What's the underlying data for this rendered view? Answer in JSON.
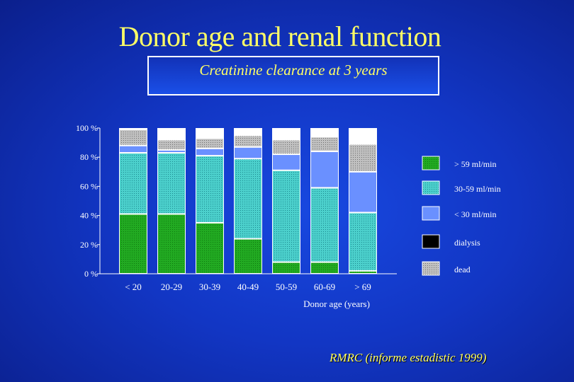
{
  "title": "Donor age and renal function",
  "subtitle": "Creatinine clearance at 3 years",
  "source": "RMRC (informe estadistic 1999)",
  "chart_data": {
    "type": "bar",
    "stacked": true,
    "xlabel": "Donor age (years)",
    "ylabel": "",
    "ylim": [
      0,
      100
    ],
    "yticks": [
      "0 %",
      "20 %",
      "40 %",
      "60 %",
      "80 %",
      "100 %"
    ],
    "categories": [
      "< 20",
      "20-29",
      "30-39",
      "40-49",
      "50-59",
      "60-69",
      "> 69"
    ],
    "series": [
      {
        "name": "> 59 ml/min",
        "color": "#22aa22",
        "pattern": "dots",
        "values": [
          41,
          41,
          35,
          24,
          8,
          8,
          2
        ]
      },
      {
        "name": "30-59 ml/min",
        "color": "#40c8c8",
        "pattern": "dots",
        "values": [
          42,
          42,
          46,
          55,
          63,
          51,
          40
        ]
      },
      {
        "name": "< 30 ml/min",
        "color": "#6a90ff",
        "pattern": "solid",
        "values": [
          5,
          2,
          5,
          8,
          11,
          25,
          28
        ]
      },
      {
        "name": "dialysis",
        "color": "#000000",
        "pattern": "solid",
        "values": [
          0,
          0,
          0,
          0,
          0,
          0,
          0
        ]
      },
      {
        "name": "dead",
        "color": "#b0b0b0",
        "pattern": "dots",
        "values": [
          11,
          7,
          7,
          8,
          10,
          10,
          19
        ]
      }
    ],
    "legend_position": "right",
    "grid": false
  }
}
